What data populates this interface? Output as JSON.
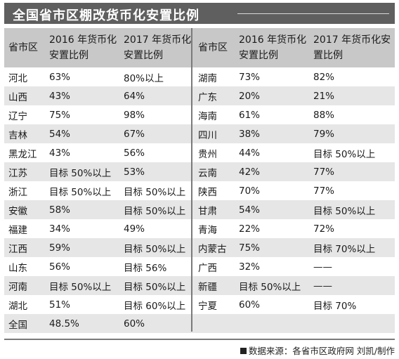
{
  "title": "全国省市区棚改货币化安置比例",
  "source_note": "数据来源：各省市区政府网 刘凯/制作",
  "chart_data": {
    "type": "table",
    "columns": [
      "省市区",
      "2016 年货币化安置比例",
      "2017 年货币化安置比例",
      "省市区",
      "2016 年货币化安置比例",
      "2017 年货币化安置比例"
    ],
    "rows": [
      [
        "河北",
        "63%",
        "80%以上",
        "湖南",
        "73%",
        "82%"
      ],
      [
        "山西",
        "43%",
        "64%",
        "广东",
        "20%",
        "21%"
      ],
      [
        "辽宁",
        "75%",
        "98%",
        "海南",
        "61%",
        "88%"
      ],
      [
        "吉林",
        "54%",
        "67%",
        "四川",
        "38%",
        "79%"
      ],
      [
        "黑龙江",
        "43%",
        "56%",
        "贵州",
        "44%",
        "目标 50%以上"
      ],
      [
        "江苏",
        "目标 50%以上",
        "53%",
        "云南",
        "42%",
        "77%"
      ],
      [
        "浙江",
        "目标 50%以上",
        "目标 50%以上",
        "陕西",
        "70%",
        "77%"
      ],
      [
        "安徽",
        "58%",
        "目标 50%以上",
        "甘肃",
        "54%",
        "目标 50%以上"
      ],
      [
        "福建",
        "34%",
        "49%",
        "青海",
        "22%",
        "72%"
      ],
      [
        "江西",
        "59%",
        "目标 50%以上",
        "内蒙古",
        "75%",
        "目标 70%以上"
      ],
      [
        "山东",
        "56%",
        "目标 56%",
        "广西",
        "32%",
        "——"
      ],
      [
        "河南",
        "目标 50%以上",
        "目标 50%以上",
        "新疆",
        "目标 50%以上",
        "——"
      ],
      [
        "湖北",
        "51%",
        "目标 60%以上",
        "宁夏",
        "60%",
        "目标 70%"
      ],
      [
        "全国",
        "48.5%",
        "60%",
        "",
        "",
        ""
      ]
    ]
  }
}
